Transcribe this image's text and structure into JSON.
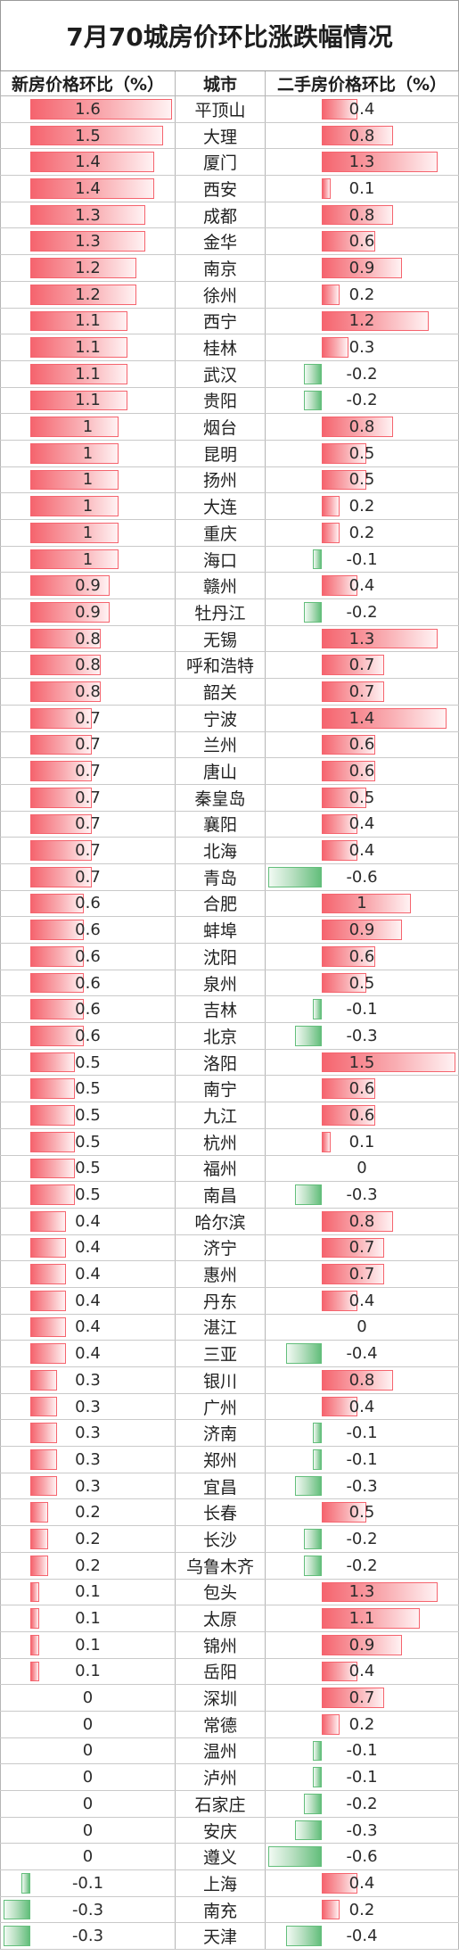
{
  "colors": {
    "positive_bar": "#f5646e",
    "negative_bar": "#63be7b"
  },
  "chart_data": {
    "type": "bar",
    "title": "7月70城房价环比涨跌幅情况",
    "category_label": "城市",
    "grid": true,
    "categories": [
      "平顶山",
      "大理",
      "厦门",
      "西安",
      "成都",
      "金华",
      "南京",
      "徐州",
      "西宁",
      "桂林",
      "武汉",
      "贵阳",
      "烟台",
      "昆明",
      "扬州",
      "大连",
      "重庆",
      "海口",
      "赣州",
      "牡丹江",
      "无锡",
      "呼和浩特",
      "韶关",
      "宁波",
      "兰州",
      "唐山",
      "秦皇岛",
      "襄阳",
      "北海",
      "青岛",
      "合肥",
      "蚌埠",
      "沈阳",
      "泉州",
      "吉林",
      "北京",
      "洛阳",
      "南宁",
      "九江",
      "杭州",
      "福州",
      "南昌",
      "哈尔滨",
      "济宁",
      "惠州",
      "丹东",
      "湛江",
      "三亚",
      "银川",
      "广州",
      "济南",
      "郑州",
      "宜昌",
      "长春",
      "长沙",
      "乌鲁木齐",
      "包头",
      "太原",
      "锦州",
      "岳阳",
      "深圳",
      "常德",
      "温州",
      "泸州",
      "石家庄",
      "安庆",
      "遵义",
      "上海",
      "南充",
      "天津"
    ],
    "series": [
      {
        "name": "新房价格环比（%）",
        "values": [
          1.6,
          1.5,
          1.4,
          1.4,
          1.3,
          1.3,
          1.2,
          1.2,
          1.1,
          1.1,
          1.1,
          1.1,
          1,
          1,
          1,
          1,
          1,
          1,
          0.9,
          0.9,
          0.8,
          0.8,
          0.8,
          0.7,
          0.7,
          0.7,
          0.7,
          0.7,
          0.7,
          0.7,
          0.6,
          0.6,
          0.6,
          0.6,
          0.6,
          0.6,
          0.5,
          0.5,
          0.5,
          0.5,
          0.5,
          0.5,
          0.4,
          0.4,
          0.4,
          0.4,
          0.4,
          0.4,
          0.3,
          0.3,
          0.3,
          0.3,
          0.3,
          0.2,
          0.2,
          0.2,
          0.1,
          0.1,
          0.1,
          0.1,
          0,
          0,
          0,
          0,
          0,
          0,
          0,
          -0.1,
          -0.3,
          -0.3
        ]
      },
      {
        "name": "二手房价格环比（%）",
        "values": [
          0.4,
          0.8,
          1.3,
          0.1,
          0.8,
          0.6,
          0.9,
          0.2,
          1.2,
          0.3,
          -0.2,
          -0.2,
          0.8,
          0.5,
          0.5,
          0.2,
          0.2,
          -0.1,
          0.4,
          -0.2,
          1.3,
          0.7,
          0.7,
          1.4,
          0.6,
          0.6,
          0.5,
          0.4,
          0.4,
          -0.6,
          1,
          0.9,
          0.6,
          0.5,
          -0.1,
          -0.3,
          1.5,
          0.6,
          0.6,
          0.1,
          0,
          -0.3,
          0.8,
          0.7,
          0.7,
          0.4,
          0,
          -0.4,
          0.8,
          0.4,
          -0.1,
          -0.1,
          -0.3,
          0.5,
          -0.2,
          -0.2,
          1.3,
          1.1,
          0.9,
          0.4,
          0.7,
          0.2,
          -0.1,
          -0.1,
          -0.2,
          -0.3,
          -0.6,
          0.4,
          0.2,
          -0.4
        ]
      }
    ]
  }
}
